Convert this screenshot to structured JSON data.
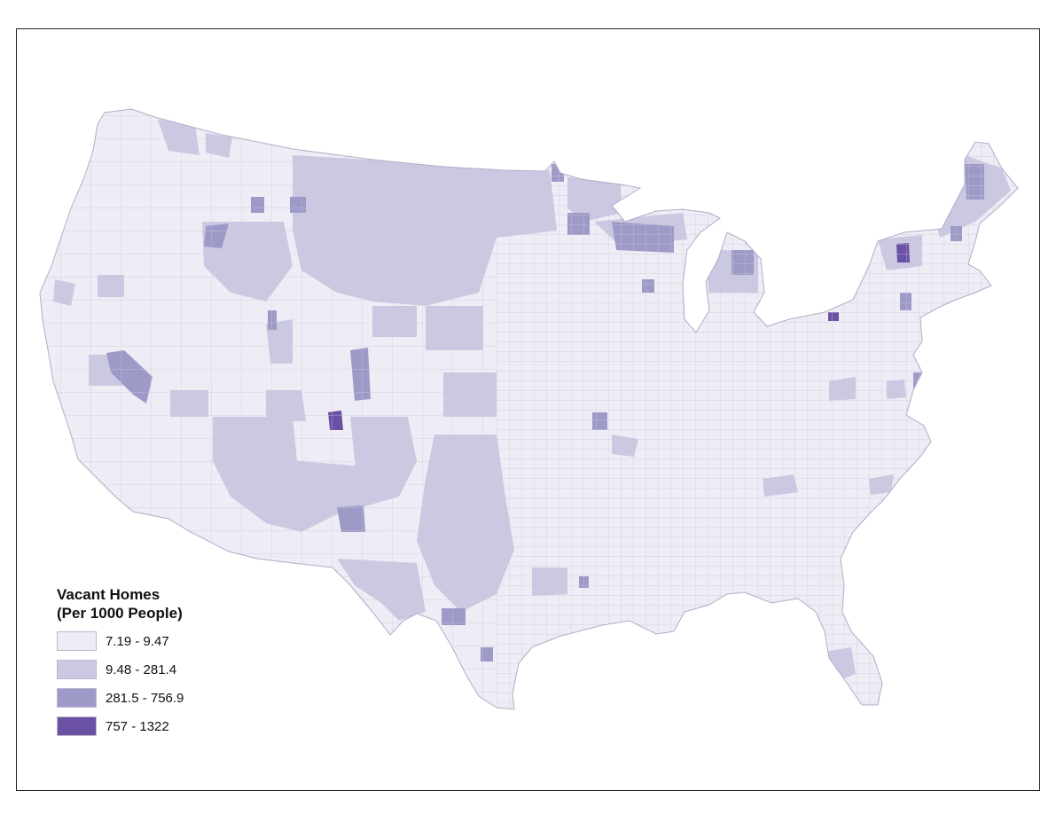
{
  "map": {
    "legend": {
      "title_line1": "Vacant Homes",
      "title_line2": "(Per 1000 People)",
      "classes": [
        {
          "label": "7.19 - 9.47",
          "color": "#eeedf5"
        },
        {
          "label": "9.48 - 281.4",
          "color": "#cbc8e2"
        },
        {
          "label": "281.5 - 756.9",
          "color": "#9e9ac8"
        },
        {
          "label": "757 - 1322",
          "color": "#6a51a3"
        }
      ]
    },
    "county_border_color": "#c9c7dc",
    "outline_color": "#b0adc8"
  }
}
